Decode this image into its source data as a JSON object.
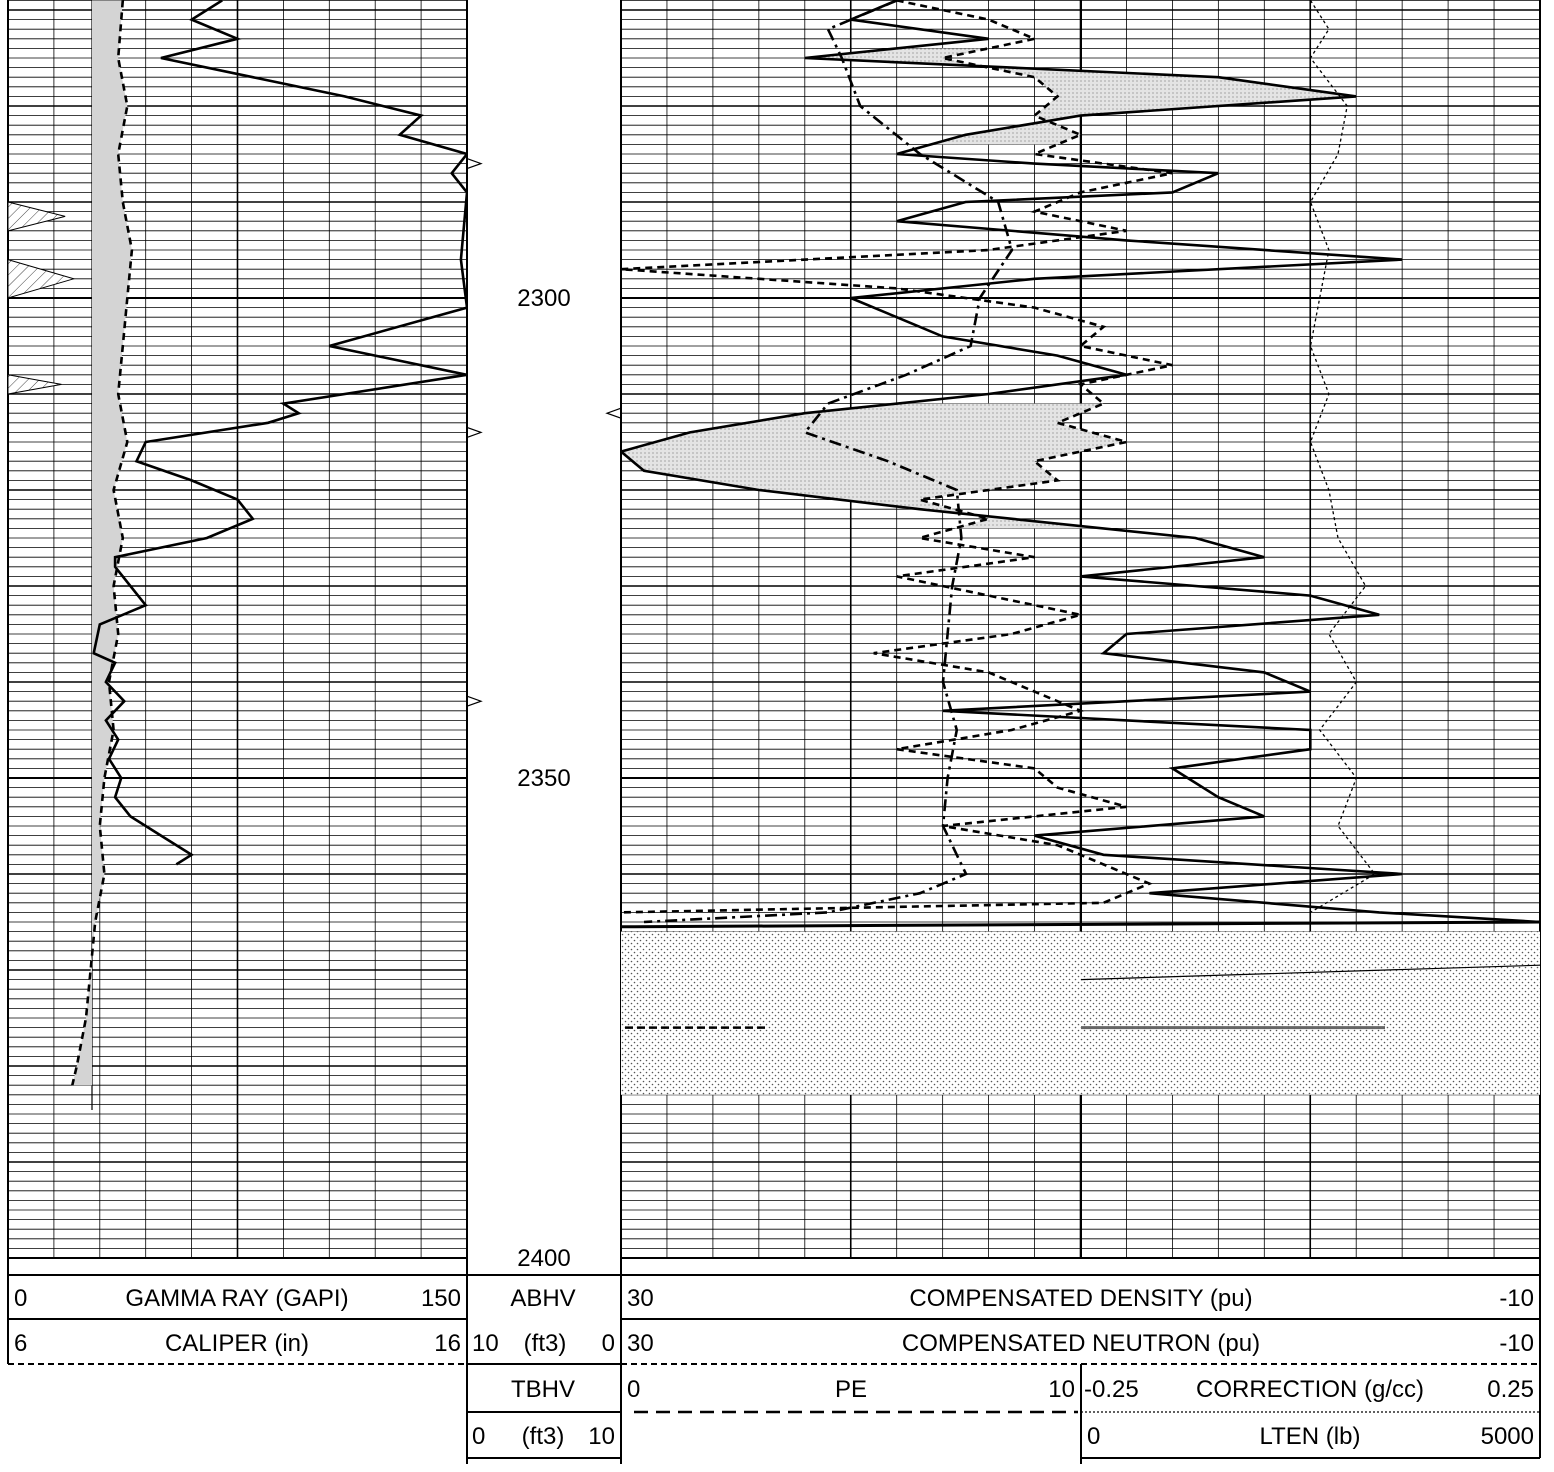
{
  "chart_data": {
    "type": "line",
    "title": "",
    "depth_axis": {
      "ticks": [
        "2300",
        "2350",
        "2400"
      ],
      "range": [
        2269,
        2400
      ]
    },
    "tracks": [
      {
        "id": "track1",
        "curves": [
          {
            "name": "GAMMA RAY (GAPI)",
            "min": "0",
            "max": "150",
            "style": "solid",
            "points": [
              [
                2269,
                70
              ],
              [
                2271,
                60
              ],
              [
                2273,
                75
              ],
              [
                2275,
                50
              ],
              [
                2277,
                80
              ],
              [
                2279,
                110
              ],
              [
                2281,
                135
              ],
              [
                2283,
                128
              ],
              [
                2285,
                150
              ],
              [
                2287,
                145
              ],
              [
                2289,
                150
              ],
              [
                2296,
                148
              ],
              [
                2301,
                150
              ],
              [
                2305,
                105
              ],
              [
                2308,
                150
              ],
              [
                2311,
                90
              ],
              [
                2312,
                95
              ],
              [
                2313,
                85
              ],
              [
                2315,
                45
              ],
              [
                2317,
                42
              ],
              [
                2319,
                60
              ],
              [
                2321,
                75
              ],
              [
                2323,
                80
              ],
              [
                2325,
                65
              ],
              [
                2327,
                35
              ],
              [
                2328,
                35
              ],
              [
                2332,
                45
              ],
              [
                2334,
                30
              ],
              [
                2337,
                28
              ],
              [
                2338,
                35
              ],
              [
                2340,
                32
              ],
              [
                2342,
                38
              ],
              [
                2344,
                32
              ],
              [
                2346,
                36
              ],
              [
                2348,
                33
              ],
              [
                2350,
                37
              ],
              [
                2352,
                35
              ],
              [
                2354,
                40
              ],
              [
                2356,
                50
              ],
              [
                2358,
                60
              ],
              [
                2359,
                55
              ]
            ]
          },
          {
            "name": "CALIPER (in)",
            "min": "6",
            "max": "16",
            "style": "dashed",
            "points": [
              [
                2269,
                8.5
              ],
              [
                2275,
                8.4
              ],
              [
                2280,
                8.6
              ],
              [
                2285,
                8.4
              ],
              [
                2290,
                8.5
              ],
              [
                2295,
                8.7
              ],
              [
                2300,
                8.6
              ],
              [
                2305,
                8.5
              ],
              [
                2310,
                8.4
              ],
              [
                2315,
                8.6
              ],
              [
                2320,
                8.3
              ],
              [
                2325,
                8.5
              ],
              [
                2330,
                8.3
              ],
              [
                2335,
                8.4
              ],
              [
                2340,
                8.2
              ],
              [
                2345,
                8.3
              ],
              [
                2350,
                8.1
              ],
              [
                2355,
                8.0
              ],
              [
                2360,
                8.1
              ],
              [
                2365,
                7.9
              ],
              [
                2370,
                7.8
              ],
              [
                2375,
                7.7
              ],
              [
                2380,
                7.5
              ],
              [
                2382,
                7.4
              ]
            ]
          }
        ]
      },
      {
        "id": "track2",
        "curves": [
          {
            "name": "ABHV",
            "min": "10",
            "max": "0",
            "unit": "(ft3)"
          },
          {
            "name": "TBHV",
            "min": "0",
            "max": "10",
            "unit": "(ft3)"
          }
        ]
      },
      {
        "id": "track3",
        "curves": [
          {
            "name": "COMPENSATED DENSITY (pu)",
            "min": "30",
            "max": "-10",
            "style": "solid",
            "points": [
              [
                2269,
                18
              ],
              [
                2271,
                20
              ],
              [
                2273,
                14
              ],
              [
                2275,
                22
              ],
              [
                2277,
                4
              ],
              [
                2279,
                -2
              ],
              [
                2281,
                10
              ],
              [
                2283,
                15
              ],
              [
                2285,
                18
              ],
              [
                2286,
                12
              ],
              [
                2287,
                4
              ],
              [
                2289,
                6
              ],
              [
                2290,
                15
              ],
              [
                2292,
                18
              ],
              [
                2294,
                8
              ],
              [
                2296,
                -4
              ],
              [
                2298,
                12
              ],
              [
                2300,
                20
              ],
              [
                2302,
                18
              ],
              [
                2304,
                16
              ],
              [
                2306,
                11
              ],
              [
                2308,
                8
              ],
              [
                2310,
                14
              ],
              [
                2312,
                22
              ],
              [
                2314,
                27
              ],
              [
                2316,
                30
              ],
              [
                2318,
                29
              ],
              [
                2320,
                24
              ],
              [
                2322,
                17
              ],
              [
                2325,
                5
              ],
              [
                2327,
                2
              ],
              [
                2329,
                10
              ],
              [
                2331,
                0
              ],
              [
                2333,
                -3
              ],
              [
                2335,
                8
              ],
              [
                2337,
                9
              ],
              [
                2339,
                2
              ],
              [
                2341,
                0
              ],
              [
                2343,
                16
              ],
              [
                2345,
                0
              ],
              [
                2347,
                0
              ],
              [
                2349,
                6
              ],
              [
                2352,
                4
              ],
              [
                2354,
                2
              ],
              [
                2356,
                12
              ],
              [
                2358,
                9
              ],
              [
                2360,
                -4
              ],
              [
                2362,
                7
              ],
              [
                2364,
                -3
              ],
              [
                2365,
                -10
              ]
            ]
          },
          {
            "name": "COMPENSATED NEUTRON (pu)",
            "min": "30",
            "max": "-10",
            "style": "dashed",
            "points": [
              [
                2269,
                18
              ],
              [
                2271,
                14
              ],
              [
                2273,
                12
              ],
              [
                2275,
                16
              ],
              [
                2277,
                12
              ],
              [
                2279,
                11
              ],
              [
                2281,
                12
              ],
              [
                2283,
                10
              ],
              [
                2285,
                12
              ],
              [
                2287,
                6
              ],
              [
                2289,
                10
              ],
              [
                2291,
                12
              ],
              [
                2293,
                8
              ],
              [
                2295,
                14
              ],
              [
                2297,
                30
              ],
              [
                2299,
                18
              ],
              [
                2301,
                12
              ],
              [
                2303,
                9
              ],
              [
                2305,
                10
              ],
              [
                2307,
                6
              ],
              [
                2309,
                10
              ],
              [
                2311,
                9
              ],
              [
                2313,
                11
              ],
              [
                2315,
                8
              ],
              [
                2317,
                12
              ],
              [
                2319,
                11
              ],
              [
                2321,
                17
              ],
              [
                2323,
                14
              ],
              [
                2325,
                17
              ],
              [
                2327,
                12
              ],
              [
                2329,
                18
              ],
              [
                2331,
                14
              ],
              [
                2333,
                10
              ],
              [
                2335,
                13
              ],
              [
                2337,
                19
              ],
              [
                2339,
                14
              ],
              [
                2341,
                12
              ],
              [
                2343,
                10
              ],
              [
                2345,
                13
              ],
              [
                2347,
                18
              ],
              [
                2349,
                12
              ],
              [
                2351,
                11
              ],
              [
                2353,
                8
              ],
              [
                2355,
                16
              ],
              [
                2357,
                11
              ],
              [
                2359,
                9
              ],
              [
                2361,
                7
              ],
              [
                2363,
                9
              ],
              [
                2364,
                30
              ]
            ]
          },
          {
            "name": "PE",
            "min": "0",
            "max": "10",
            "style": "dashdot",
            "points": [
              [
                2269,
                6
              ],
              [
                2272,
                4.5
              ],
              [
                2275,
                4.8
              ],
              [
                2280,
                5.2
              ],
              [
                2285,
                6.5
              ],
              [
                2290,
                8.2
              ],
              [
                2295,
                8.5
              ],
              [
                2300,
                7.8
              ],
              [
                2305,
                7.6
              ],
              [
                2308,
                6.2
              ],
              [
                2311,
                4.5
              ],
              [
                2314,
                4.0
              ],
              [
                2317,
                5.8
              ],
              [
                2320,
                7.3
              ],
              [
                2325,
                7.4
              ],
              [
                2330,
                7.2
              ],
              [
                2335,
                7.1
              ],
              [
                2340,
                7.0
              ],
              [
                2345,
                7.3
              ],
              [
                2350,
                7.1
              ],
              [
                2355,
                7.0
              ],
              [
                2360,
                7.5
              ],
              [
                2362,
                6.5
              ],
              [
                2364,
                4.5
              ],
              [
                2365,
                0.5
              ]
            ]
          }
        ]
      },
      {
        "id": "track4",
        "curves": [
          {
            "name": "CORRECTION (g/cc)",
            "min": "-0.25",
            "max": "0.25",
            "style": "fine-dotted",
            "points": [
              [
                2269,
                0.0
              ],
              [
                2272,
                0.02
              ],
              [
                2275,
                0.0
              ],
              [
                2280,
                0.04
              ],
              [
                2285,
                0.03
              ],
              [
                2290,
                0.0
              ],
              [
                2295,
                0.02
              ],
              [
                2300,
                0.01
              ],
              [
                2305,
                0.0
              ],
              [
                2310,
                0.02
              ],
              [
                2315,
                0.0
              ],
              [
                2320,
                0.02
              ],
              [
                2325,
                0.03
              ],
              [
                2330,
                0.06
              ],
              [
                2335,
                0.02
              ],
              [
                2340,
                0.05
              ],
              [
                2345,
                0.01
              ],
              [
                2350,
                0.05
              ],
              [
                2355,
                0.03
              ],
              [
                2360,
                0.07
              ],
              [
                2364,
                0.0
              ]
            ]
          },
          {
            "name": "LTEN (lb)",
            "min": "0",
            "max": "5000"
          }
        ]
      }
    ]
  },
  "header": {
    "row1": {
      "gr_min": "0",
      "gr_label": "GAMMA RAY (GAPI)",
      "gr_max": "150",
      "abhv_label": "ABHV",
      "den_min": "30",
      "den_label": "COMPENSATED DENSITY (pu)",
      "den_max": "-10"
    },
    "row2": {
      "cal_min": "6",
      "cal_label": "CALIPER (in)",
      "cal_max": "16",
      "abhv_min": "10",
      "abhv_unit": "(ft3)",
      "abhv_max": "0",
      "neu_min": "30",
      "neu_label": "COMPENSATED NEUTRON (pu)",
      "neu_max": "-10"
    },
    "row3": {
      "tbhv_label": "TBHV",
      "pe_min": "0",
      "pe_label": "PE",
      "pe_max": "10",
      "corr_min": "-0.25",
      "corr_label": "CORRECTION (g/cc)",
      "corr_max": "0.25"
    },
    "row4": {
      "tbhv_min": "0",
      "tbhv_unit": "(ft3)",
      "tbhv_max": "10",
      "lten_min": "0",
      "lten_label": "LTEN (lb)",
      "lten_max": "5000"
    }
  }
}
